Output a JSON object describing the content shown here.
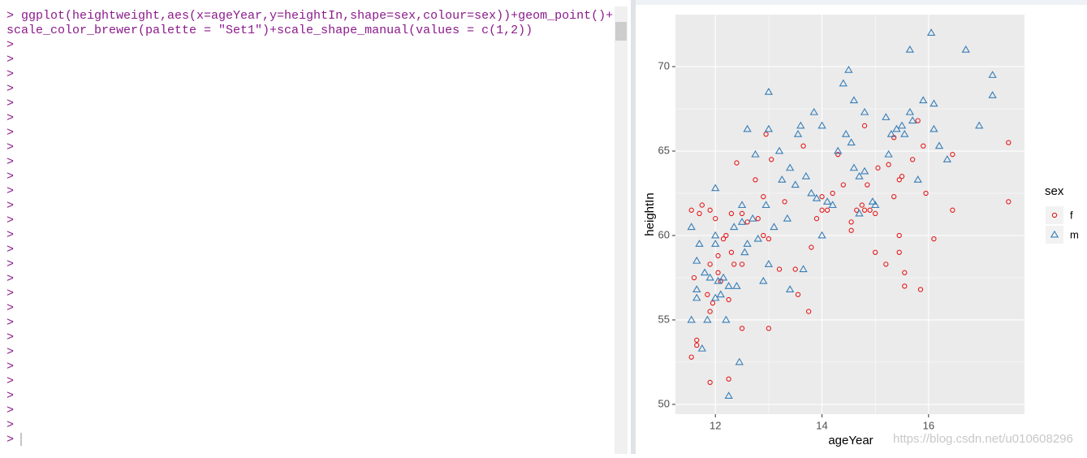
{
  "console": {
    "command": [
      "> ggplot(heightweight,aes(x=ageYear,y=heightIn,shape=sex,colour=sex))+geom_point()+",
      "scale_color_brewer(palette = \"Set1\")+scale_shape_manual(values = c(1,2))"
    ],
    "prompts": [
      ">",
      ">",
      ">",
      ">",
      ">",
      ">",
      ">",
      ">",
      ">",
      ">",
      ">",
      ">",
      ">",
      ">",
      ">",
      ">",
      ">",
      ">",
      ">",
      ">",
      ">",
      ">",
      ">",
      ">",
      ">",
      ">",
      ">",
      ">"
    ]
  },
  "watermark": "https://blog.csdn.net/u010608296",
  "chart_data": {
    "type": "scatter",
    "xlabel": "ageYear",
    "ylabel": "heightIn",
    "legend_title": "sex",
    "legend_position": "right",
    "grid": true,
    "xlim": [
      11.25,
      17.8
    ],
    "ylim": [
      49.42,
      73.08
    ],
    "xticks": [
      12,
      14,
      16
    ],
    "yticks": [
      50,
      55,
      60,
      65,
      70
    ],
    "series": [
      {
        "name": "f",
        "color": "#E41A1C",
        "shape": "circle",
        "x": [
          11.55,
          11.65,
          11.65,
          11.6,
          11.55,
          11.75,
          11.7,
          11.85,
          11.9,
          11.9,
          11.95,
          11.9,
          11.9,
          12,
          12.05,
          12.05,
          12.1,
          12.15,
          12.2,
          12.25,
          12.25,
          12.3,
          12.35,
          12.3,
          12.4,
          12.5,
          12.5,
          12.5,
          12.6,
          12.75,
          12.8,
          12.9,
          12.9,
          12.95,
          13,
          13,
          13.05,
          13.2,
          13.3,
          13.5,
          13.55,
          13.65,
          13.75,
          13.8,
          13.9,
          14,
          14,
          14.1,
          14.2,
          14.3,
          14.4,
          14.55,
          14.55,
          14.65,
          14.75,
          14.8,
          14.8,
          14.85,
          14.9,
          15,
          15,
          15.05,
          15.2,
          15.25,
          15.35,
          15.35,
          15.45,
          15.45,
          15.5,
          15.45,
          15.55,
          15.55,
          15.7,
          15.8,
          15.85,
          15.9,
          15.95,
          16.1,
          16.45,
          16.45,
          17.5,
          17.5
        ],
        "values": [
          52.8,
          53.8,
          53.5,
          57.5,
          61.5,
          61.8,
          61.3,
          56.5,
          51.3,
          55.5,
          56,
          58.3,
          61.5,
          61,
          58.8,
          57.8,
          57.3,
          59.8,
          60,
          51.5,
          56.2,
          59,
          58.3,
          61.3,
          64.3,
          61.3,
          58.3,
          54.5,
          60.8,
          63.3,
          61,
          62.3,
          60,
          66,
          54.5,
          59.8,
          64.5,
          58,
          62,
          58,
          56.5,
          65.3,
          55.5,
          59.3,
          61,
          61.5,
          62.3,
          61.5,
          62.5,
          64.8,
          63,
          60.8,
          60.3,
          61.5,
          61.8,
          61.5,
          66.5,
          63,
          61.5,
          59,
          61.3,
          64,
          58.3,
          64.2,
          62.3,
          65.8,
          60,
          59,
          63.5,
          63.3,
          57.8,
          57,
          64.5,
          66.8,
          56.8,
          65.3,
          62.5,
          59.8,
          61.5,
          64.8,
          65.5,
          62
        ]
      },
      {
        "name": "m",
        "color": "#377EB8",
        "shape": "triangle",
        "x": [
          11.55,
          11.55,
          11.65,
          11.65,
          11.65,
          11.7,
          11.75,
          11.8,
          11.85,
          11.9,
          12,
          12,
          12,
          12,
          12.05,
          12.1,
          12.15,
          12.2,
          12.25,
          12.25,
          12.35,
          12.4,
          12.45,
          12.5,
          12.5,
          12.55,
          12.6,
          12.6,
          12.7,
          12.75,
          12.8,
          12.9,
          12.95,
          13,
          13,
          13,
          13.1,
          13.2,
          13.25,
          13.35,
          13.4,
          13.4,
          13.5,
          13.55,
          13.6,
          13.65,
          13.7,
          13.8,
          13.85,
          13.9,
          14,
          14,
          14.1,
          14.2,
          14.3,
          14.4,
          14.45,
          14.5,
          14.55,
          14.6,
          14.6,
          14.7,
          14.7,
          14.8,
          14.8,
          14.95,
          15,
          15.2,
          15.25,
          15.3,
          15.4,
          15.5,
          15.55,
          15.65,
          15.65,
          15.7,
          15.8,
          15.9,
          16.05,
          16.1,
          16.1,
          16.2,
          16.35,
          16.7,
          16.95,
          17.2,
          17.2
        ],
        "values": [
          55,
          60.5,
          56.8,
          56.3,
          58.5,
          59.5,
          53.3,
          57.8,
          55,
          57.5,
          62.8,
          60,
          59.5,
          56.3,
          57.3,
          56.5,
          57.5,
          55,
          50.5,
          57,
          60.5,
          57,
          52.5,
          61.8,
          60.8,
          59,
          59.5,
          66.3,
          61,
          64.8,
          59.8,
          57.3,
          61.8,
          68.5,
          66.3,
          58.3,
          60.5,
          65,
          63.3,
          61,
          56.8,
          64,
          63,
          66,
          66.5,
          58,
          63.5,
          62.5,
          67.3,
          62.2,
          60,
          66.5,
          62,
          61.8,
          65,
          69,
          66,
          69.8,
          65.5,
          68,
          64,
          63.5,
          61.3,
          63.8,
          67.3,
          62,
          61.8,
          67,
          64.8,
          66,
          66.3,
          66.5,
          66,
          71,
          67.3,
          66.8,
          63.3,
          68,
          72,
          67.8,
          66.3,
          65.3,
          64.5,
          71,
          66.5,
          69.5,
          68.3
        ]
      }
    ]
  }
}
